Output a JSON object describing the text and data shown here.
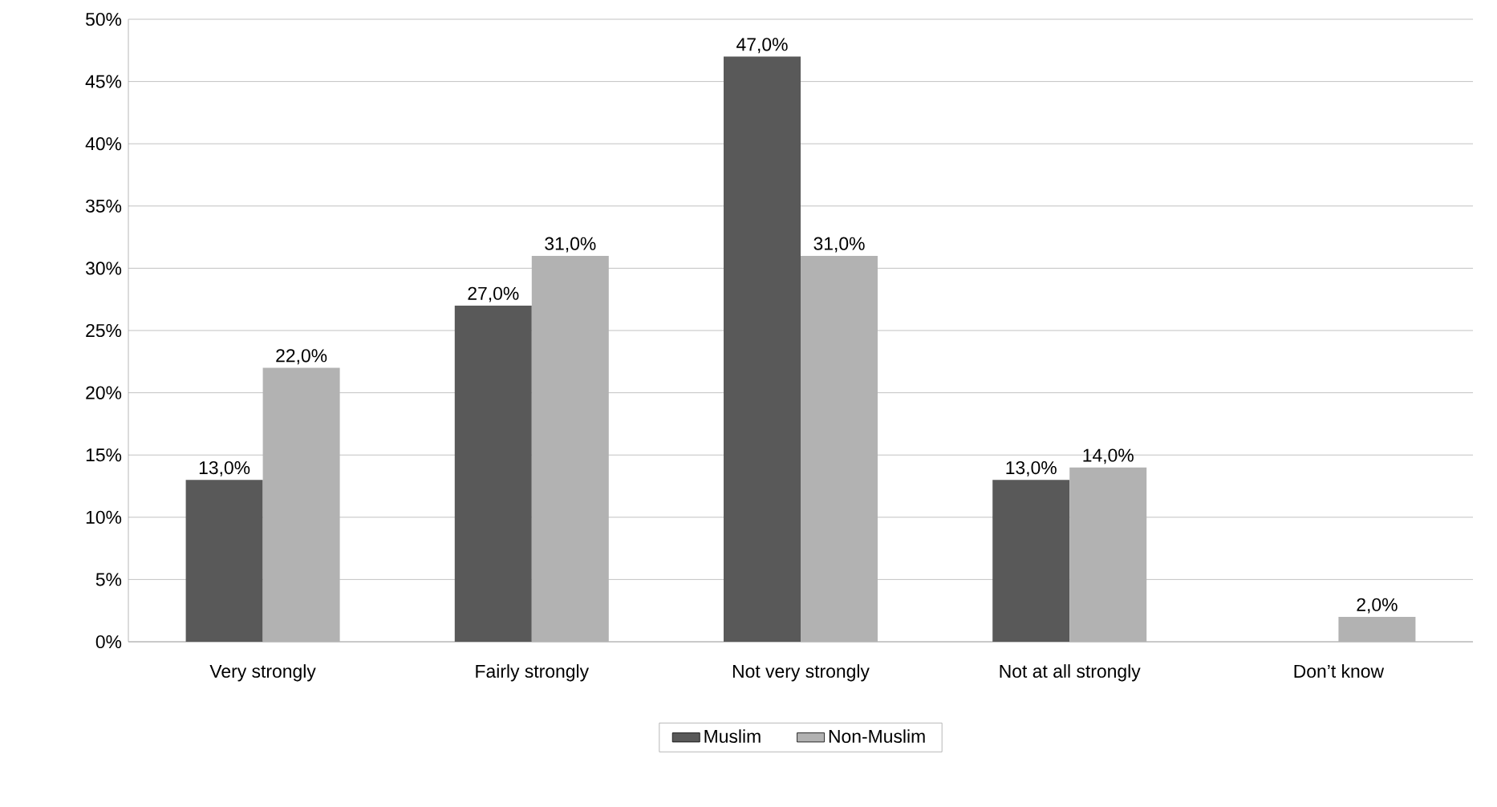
{
  "chart_data": {
    "type": "bar",
    "categories": [
      "Very strongly",
      "Fairly strongly",
      "Not very strongly",
      "Not at all strongly",
      "Don’t know"
    ],
    "series": [
      {
        "name": "Muslim",
        "color": "#595959",
        "values": [
          13,
          27,
          47,
          13,
          null
        ],
        "value_labels": [
          "13,0%",
          "27,0%",
          "47,0%",
          "13,0%",
          null
        ]
      },
      {
        "name": "Non-Muslim",
        "color": "#b2b2b2",
        "values": [
          22,
          31,
          31,
          14,
          2
        ],
        "value_labels": [
          "22,0%",
          "31,0%",
          "31,0%",
          "14,0%",
          "2,0%"
        ]
      }
    ],
    "ylim": [
      0,
      50
    ],
    "yticks": [
      {
        "value": 0,
        "label": "0%"
      },
      {
        "value": 5,
        "label": "5%"
      },
      {
        "value": 10,
        "label": "10%"
      },
      {
        "value": 15,
        "label": "15%"
      },
      {
        "value": 20,
        "label": "20%"
      },
      {
        "value": 25,
        "label": "25%"
      },
      {
        "value": 30,
        "label": "30%"
      },
      {
        "value": 35,
        "label": "35%"
      },
      {
        "value": 40,
        "label": "40%"
      },
      {
        "value": 45,
        "label": "45%"
      },
      {
        "value": 50,
        "label": "50%"
      }
    ],
    "grid": "y",
    "legend": "bottom"
  }
}
